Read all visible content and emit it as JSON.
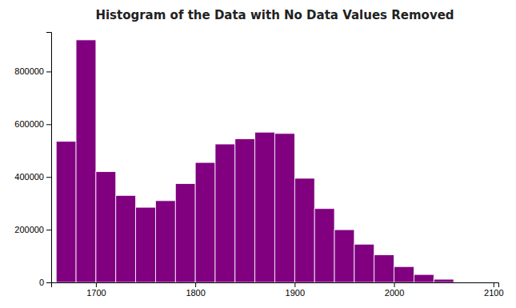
{
  "chart_data": {
    "type": "histogram",
    "title": "Histogram of the Data with No Data Values Removed",
    "bins": [
      1660,
      1680,
      1700,
      1720,
      1740,
      1760,
      1780,
      1800,
      1820,
      1840,
      1860,
      1880,
      1900,
      1920,
      1940,
      1960,
      1980,
      2000,
      2020,
      2040,
      2060,
      2080,
      2100
    ],
    "values": [
      535000,
      920000,
      420000,
      330000,
      285000,
      310000,
      375000,
      455000,
      525000,
      545000,
      570000,
      565000,
      395000,
      280000,
      200000,
      145000,
      105000,
      60000,
      30000,
      12000,
      0,
      0
    ],
    "color": "#800080",
    "xlim": [
      1655,
      2105
    ],
    "ylim": [
      0,
      950000
    ],
    "xticks": [
      1700,
      1800,
      1900,
      2000,
      2100
    ],
    "yticks": [
      0,
      200000,
      400000,
      600000,
      800000
    ]
  }
}
